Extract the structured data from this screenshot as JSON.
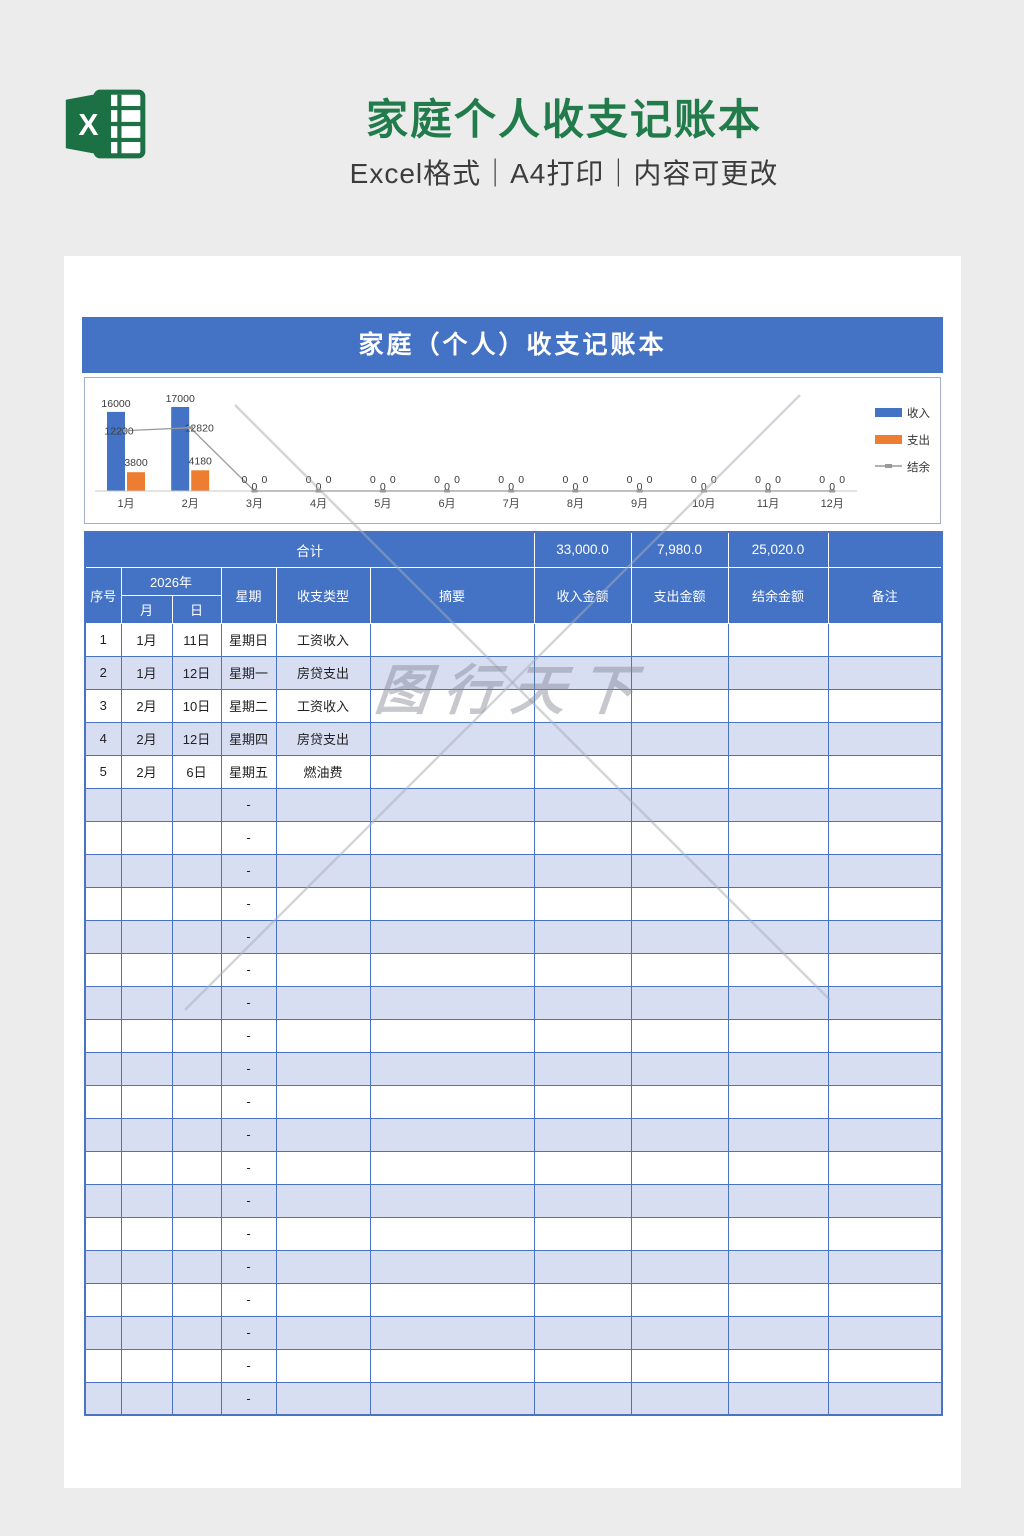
{
  "page": {
    "title": "家庭个人收支记账本",
    "subtitle": "Excel格式｜A4打印｜内容可更改",
    "watermark_text": "图行天下"
  },
  "sheet": {
    "title": "家庭（个人）收支记账本"
  },
  "colors": {
    "header_blue": "#4472c4",
    "row_shade": "#d7def2",
    "income_bar": "#4472c4",
    "expense_bar": "#ed7d31",
    "balance_line": "#9a9a9a",
    "excel_green": "#217b4b"
  },
  "chart_data": {
    "type": "bar",
    "categories": [
      "1月",
      "2月",
      "3月",
      "4月",
      "5月",
      "6月",
      "7月",
      "8月",
      "9月",
      "10月",
      "11月",
      "12月"
    ],
    "series": [
      {
        "name": "收入",
        "type": "bar",
        "color": "#4472c4",
        "values": [
          16000,
          17000,
          0,
          0,
          0,
          0,
          0,
          0,
          0,
          0,
          0,
          0
        ]
      },
      {
        "name": "支出",
        "type": "bar",
        "color": "#ed7d31",
        "values": [
          3800,
          4180,
          0,
          0,
          0,
          0,
          0,
          0,
          0,
          0,
          0,
          0
        ]
      },
      {
        "name": "结余",
        "type": "line",
        "color": "#9a9a9a",
        "values": [
          12200,
          12820,
          0,
          0,
          0,
          0,
          0,
          0,
          0,
          0,
          0,
          0
        ]
      }
    ],
    "title": "",
    "xlabel": "",
    "ylabel": "",
    "ylim": [
      0,
      17000
    ],
    "grid": false,
    "legend_position": "right",
    "data_labels": true
  },
  "table": {
    "total_row": {
      "label": "合计",
      "income": "33,000.0",
      "expense": "7,980.0",
      "balance": "25,020.0",
      "note": ""
    },
    "headers": {
      "index": "序号",
      "year": "2026年",
      "month": "月",
      "day": "日",
      "week": "星期",
      "type": "收支类型",
      "summary": "摘要",
      "income": "收入金额",
      "expense": "支出金额",
      "balance": "结余金额",
      "note": "备注"
    },
    "rows": [
      {
        "index": "1",
        "month": "1月",
        "day": "11日",
        "week": "星期日",
        "type": "工资收入",
        "summary": "",
        "income": "",
        "expense": "",
        "balance": "",
        "note": ""
      },
      {
        "index": "2",
        "month": "1月",
        "day": "12日",
        "week": "星期一",
        "type": "房贷支出",
        "summary": "",
        "income": "",
        "expense": "",
        "balance": "",
        "note": ""
      },
      {
        "index": "3",
        "month": "2月",
        "day": "10日",
        "week": "星期二",
        "type": "工资收入",
        "summary": "",
        "income": "",
        "expense": "",
        "balance": "",
        "note": ""
      },
      {
        "index": "4",
        "month": "2月",
        "day": "12日",
        "week": "星期四",
        "type": "房贷支出",
        "summary": "",
        "income": "",
        "expense": "",
        "balance": "",
        "note": ""
      },
      {
        "index": "5",
        "month": "2月",
        "day": "6日",
        "week": "星期五",
        "type": "燃油费",
        "summary": "",
        "income": "",
        "expense": "",
        "balance": "",
        "note": ""
      }
    ],
    "empty_row_week": "-",
    "empty_row_count": 19
  }
}
